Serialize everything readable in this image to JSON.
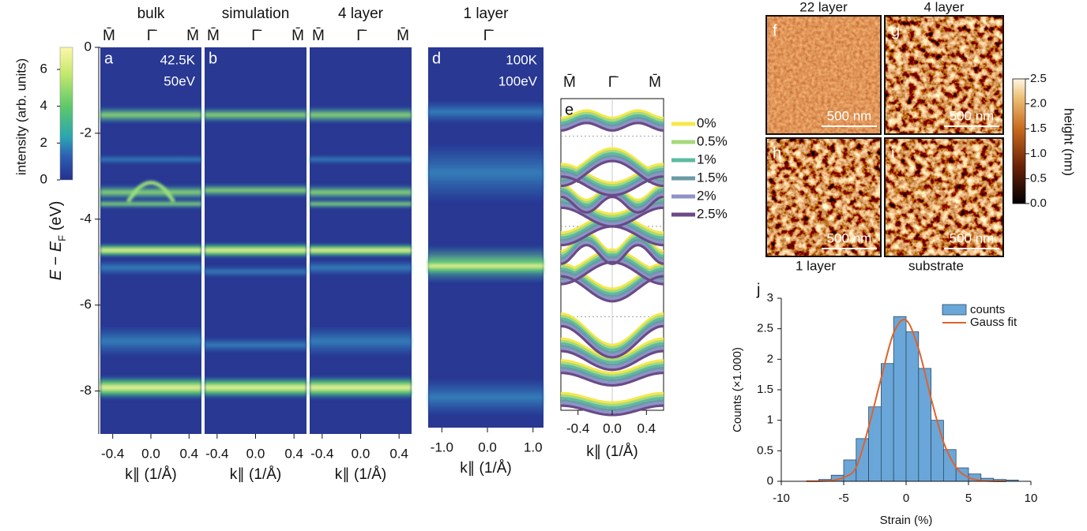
{
  "figure": {
    "intensity_colorbar": {
      "label": "intensity (arb. units)",
      "lim": [
        0,
        7.2
      ],
      "ticks": [
        0,
        2,
        4,
        6
      ]
    },
    "energy_axis": {
      "label_parts": [
        "E",
        " − ",
        "E",
        "F",
        " (eV)"
      ],
      "ylim": [
        -9,
        0
      ],
      "yticks": [
        0,
        -2,
        -4,
        -6,
        -8
      ]
    }
  },
  "afm": {
    "images": [
      {
        "panel": "f",
        "label": "22 layer",
        "scale_bar": "500 nm"
      },
      {
        "panel": "g",
        "label": "4 layer",
        "scale_bar": "500 nm"
      },
      {
        "panel": "h",
        "label": "1 layer",
        "scale_bar": "500 nm"
      },
      {
        "panel": "i",
        "label": "substrate",
        "scale_bar": "500 nm"
      }
    ],
    "colorbar": {
      "label": "height (nm)",
      "lim": [
        0,
        2.5
      ],
      "ticks": [
        {
          "value": 0,
          "label": "0.0"
        },
        0.5,
        {
          "value": 1,
          "label": "1.0"
        },
        1.5,
        {
          "value": 2,
          "label": "2.0"
        },
        2.5
      ]
    }
  },
  "chart_data": [
    {
      "type": "image",
      "title": "bulk",
      "panel": "a",
      "annotations": [
        "42.5K",
        "50eV"
      ],
      "top_labels": [
        "M̄",
        "Γ̄",
        "M̄"
      ],
      "xlabel": "k∥ (1/Å)",
      "xlim": [
        -0.53,
        0.53
      ],
      "xticks": [
        -0.4,
        {
          "value": 0,
          "label": "0.0"
        },
        0.4
      ]
    },
    {
      "type": "image",
      "title": "simulation",
      "panel": "b",
      "top_labels": [
        "M̄",
        "Γ̄",
        "M̄"
      ],
      "xlabel": "k∥ (1/Å)",
      "xlim": [
        -0.53,
        0.53
      ],
      "xticks": [
        -0.4,
        {
          "value": 0,
          "label": "0.0"
        },
        0.4
      ]
    },
    {
      "type": "image",
      "title": "4 layer",
      "top_labels": [
        "M̄",
        "Γ̄",
        "M̄"
      ],
      "xlabel": "k∥ (1/Å)",
      "xlim": [
        -0.53,
        0.53
      ],
      "xticks": [
        -0.4,
        {
          "value": 0,
          "label": "0.0"
        },
        0.4
      ]
    },
    {
      "type": "image",
      "title": "1 layer",
      "panel": "d",
      "annotations": [
        "100K",
        "100eV"
      ],
      "top_labels": [
        "Γ̄"
      ],
      "xlabel": "k∥ (1/Å)",
      "xlim": [
        -1.3,
        1.23
      ],
      "xticks": [
        {
          "value": -1,
          "label": "-1.0"
        },
        {
          "value": 0,
          "label": "0.0"
        },
        {
          "value": 1,
          "label": "1.0"
        }
      ]
    },
    {
      "type": "bands",
      "panel": "e",
      "top_labels": [
        "M̄",
        "Γ̄",
        "M̄"
      ],
      "xlabel": "k∥ (1/Å)",
      "xlim": [
        -0.6,
        0.6
      ],
      "xticks": [
        -0.4,
        {
          "value": 0,
          "label": "0.0"
        },
        0.4
      ],
      "legend": [
        {
          "name": "0%",
          "color": "#f5e84a"
        },
        {
          "name": "0.5%",
          "color": "#a6d97c"
        },
        {
          "name": "1%",
          "color": "#5cbba0"
        },
        {
          "name": "1.5%",
          "color": "#6a9aa6"
        },
        {
          "name": "2%",
          "color": "#8e92c8"
        },
        {
          "name": "2.5%",
          "color": "#6a4a86"
        }
      ]
    },
    {
      "type": "histogram",
      "panel": "j",
      "xlabel": "Strain (%)",
      "ylabel": "Counts (×1.000)",
      "xlim": [
        -10,
        10
      ],
      "ylim": [
        0,
        3
      ],
      "xticks": [
        -10,
        -5,
        0,
        5,
        10
      ],
      "yticks": [
        0,
        0.5,
        1,
        1.5,
        2,
        2.5,
        3
      ],
      "bins": [
        -7,
        -6,
        -5,
        -4,
        -3,
        -2,
        -1,
        0,
        1,
        2,
        3,
        4,
        5,
        6,
        7,
        8,
        9
      ],
      "series": [
        {
          "name": "counts",
          "color": "#6aa7d8",
          "values": [
            0.03,
            0.1,
            0.35,
            0.7,
            1.22,
            1.93,
            2.7,
            2.45,
            1.85,
            1.0,
            0.52,
            0.22,
            0.12,
            0.05,
            0.03,
            0.02
          ]
        }
      ],
      "fit": {
        "name": "Gauss fit",
        "color": "#e0622a",
        "x": [
          -8,
          -7,
          -6,
          -5,
          -4,
          -3,
          -2,
          -1,
          0,
          1,
          2,
          3,
          4,
          5,
          6,
          7,
          8
        ],
        "values": [
          0.001,
          0.002,
          0.013,
          0.063,
          0.23,
          0.89,
          1.69,
          2.43,
          2.64,
          2.17,
          1.36,
          0.64,
          0.23,
          0.063,
          0.013,
          0.002,
          0
        ]
      }
    }
  ]
}
